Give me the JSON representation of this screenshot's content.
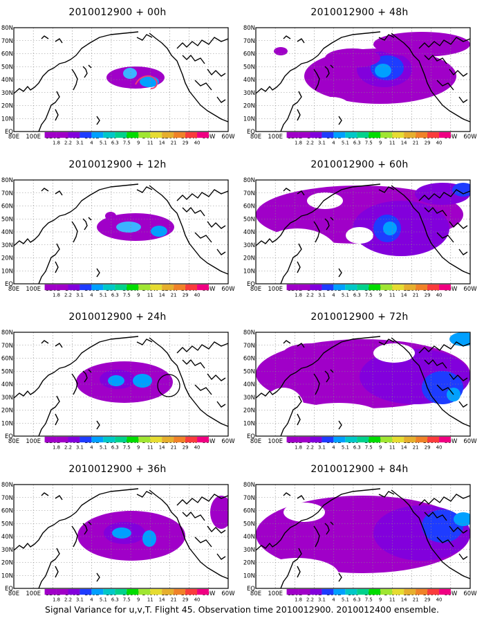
{
  "panels": [
    {
      "title": "2010012900 + 00h",
      "col": 0,
      "row": 0,
      "lead_hours": 0
    },
    {
      "title": "2010012900 + 12h",
      "col": 0,
      "row": 1,
      "lead_hours": 12
    },
    {
      "title": "2010012900 + 24h",
      "col": 0,
      "row": 2,
      "lead_hours": 24
    },
    {
      "title": "2010012900 + 36h",
      "col": 0,
      "row": 3,
      "lead_hours": 36
    },
    {
      "title": "2010012900 + 48h",
      "col": 1,
      "row": 0,
      "lead_hours": 48
    },
    {
      "title": "2010012900 + 60h",
      "col": 1,
      "row": 1,
      "lead_hours": 60
    },
    {
      "title": "2010012900 + 72h",
      "col": 1,
      "row": 2,
      "lead_hours": 72
    },
    {
      "title": "2010012900 + 84h",
      "col": 1,
      "row": 3,
      "lead_hours": 84
    }
  ],
  "axes": {
    "lon_labels": [
      "80E",
      "100E",
      "120E",
      "140E",
      "160E",
      "180",
      "160W",
      "140W",
      "120W",
      "100W",
      "80W",
      "60W"
    ],
    "lat_labels": [
      "EQ",
      "10N",
      "20N",
      "30N",
      "40N",
      "50N",
      "60N",
      "70N",
      "80N"
    ]
  },
  "colorbar": {
    "levels": [
      "1.8",
      "2.2",
      "3.1",
      "4",
      "5.1",
      "6.3",
      "7.5",
      "9",
      "11",
      "14",
      "21",
      "29",
      "40"
    ],
    "colors": [
      "#a000c8",
      "#8200dc",
      "#1e3cff",
      "#00a0ff",
      "#00c8c8",
      "#00d28c",
      "#00dc00",
      "#a0e632",
      "#e6dc32",
      "#e6af2d",
      "#f08228",
      "#fa3c3c",
      "#f00082"
    ]
  },
  "caption": "Signal Variance for u,v,T. Flight 45. Observation time 2010012900. 2010012400 ensemble."
}
